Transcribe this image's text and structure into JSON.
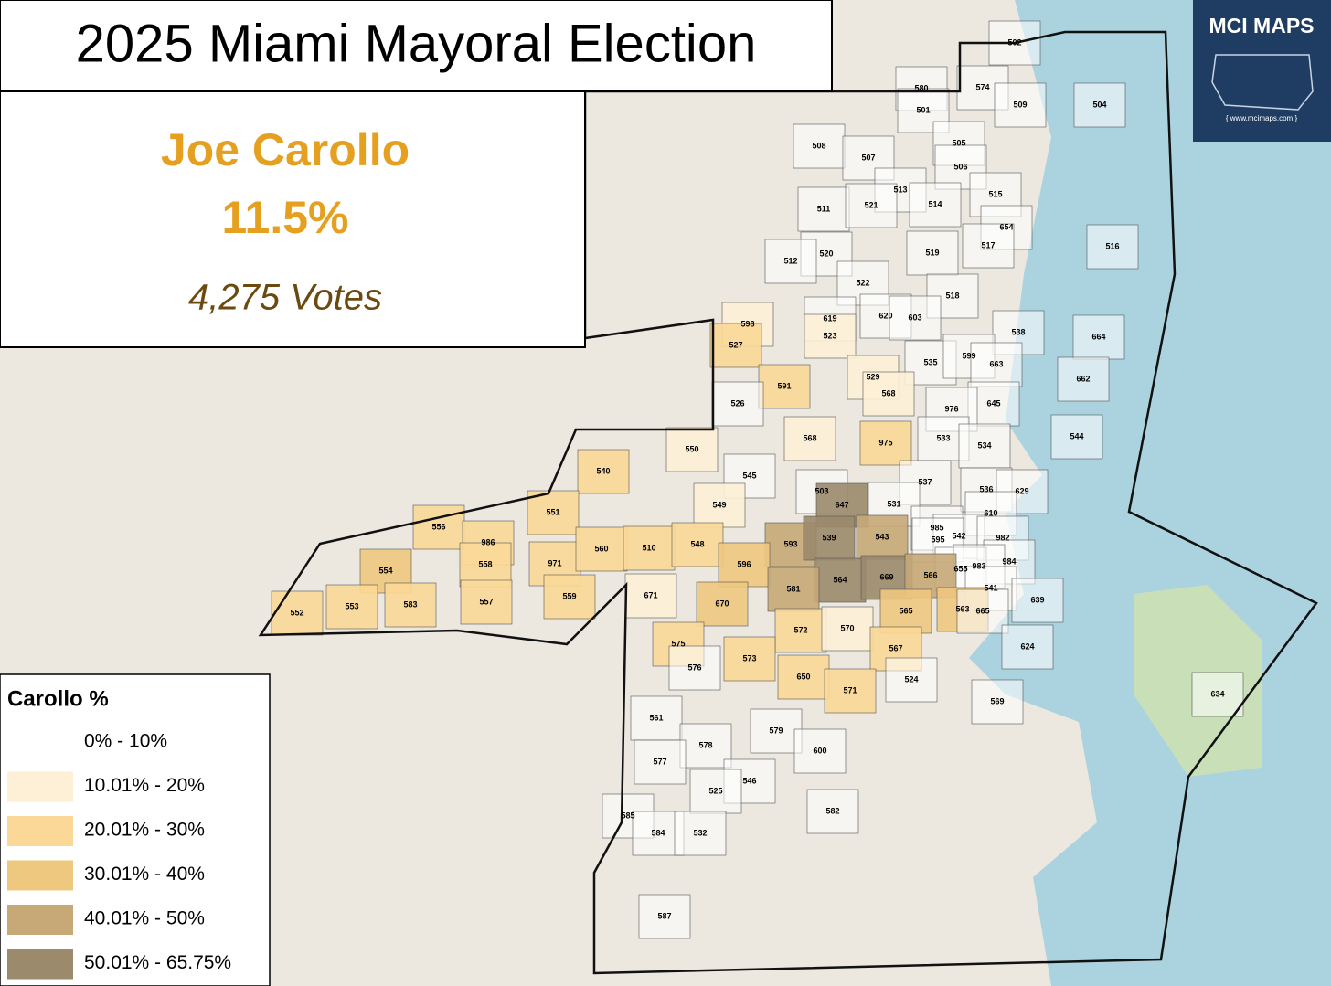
{
  "title": "2025 Miami Mayoral Election",
  "candidate": {
    "name": "Joe Carollo",
    "share": "11.5%",
    "votes": "4,275  Votes"
  },
  "logo": {
    "name": "MCI MAPS",
    "url": "{ www.mcimaps.com }"
  },
  "legend": {
    "title": "Carollo  %",
    "classes": [
      {
        "label": "0% - 10%",
        "color": "#ffffff"
      },
      {
        "label": "10.01% - 20%",
        "color": "#fdf0d6"
      },
      {
        "label": "20.01% - 30%",
        "color": "#fbd897"
      },
      {
        "label": "30.01% - 40%",
        "color": "#eec87f"
      },
      {
        "label": "40.01% - 50%",
        "color": "#c6a977"
      },
      {
        "label": "50.01% - 65.75%",
        "color": "#9b8a6b"
      }
    ]
  },
  "precincts": [
    {
      "label": "502",
      "class": 0
    },
    {
      "label": "580",
      "class": 0
    },
    {
      "label": "574",
      "class": 0
    },
    {
      "label": "501",
      "class": 0
    },
    {
      "label": "509",
      "class": 0
    },
    {
      "label": "504",
      "class": 0
    },
    {
      "label": "505",
      "class": 0
    },
    {
      "label": "508",
      "class": 0
    },
    {
      "label": "507",
      "class": 0
    },
    {
      "label": "506",
      "class": 0
    },
    {
      "label": "513",
      "class": 0
    },
    {
      "label": "514",
      "class": 0
    },
    {
      "label": "515",
      "class": 0
    },
    {
      "label": "511",
      "class": 0
    },
    {
      "label": "521",
      "class": 0
    },
    {
      "label": "654",
      "class": 0
    },
    {
      "label": "516",
      "class": 0
    },
    {
      "label": "517",
      "class": 0
    },
    {
      "label": "519",
      "class": 0
    },
    {
      "label": "520",
      "class": 0
    },
    {
      "label": "512",
      "class": 0
    },
    {
      "label": "522",
      "class": 0
    },
    {
      "label": "518",
      "class": 0
    },
    {
      "label": "619",
      "class": 0
    },
    {
      "label": "620",
      "class": 0
    },
    {
      "label": "603",
      "class": 0
    },
    {
      "label": "598",
      "class": 1
    },
    {
      "label": "527",
      "class": 2
    },
    {
      "label": "523",
      "class": 1
    },
    {
      "label": "538",
      "class": 0
    },
    {
      "label": "664",
      "class": 0
    },
    {
      "label": "535",
      "class": 0
    },
    {
      "label": "599",
      "class": 0
    },
    {
      "label": "663",
      "class": 0
    },
    {
      "label": "529",
      "class": 1
    },
    {
      "label": "591",
      "class": 2
    },
    {
      "label": "568",
      "class": 1
    },
    {
      "label": "662",
      "class": 0
    },
    {
      "label": "645",
      "class": 0
    },
    {
      "label": "976",
      "class": 0
    },
    {
      "label": "526",
      "class": 0
    },
    {
      "label": "568",
      "class": 1
    },
    {
      "label": "975",
      "class": 2
    },
    {
      "label": "533",
      "class": 0
    },
    {
      "label": "534",
      "class": 0
    },
    {
      "label": "544",
      "class": 0
    },
    {
      "label": "550",
      "class": 1
    },
    {
      "label": "540",
      "class": 2
    },
    {
      "label": "545",
      "class": 0
    },
    {
      "label": "537",
      "class": 0
    },
    {
      "label": "536",
      "class": 0
    },
    {
      "label": "629",
      "class": 0
    },
    {
      "label": "549",
      "class": 1
    },
    {
      "label": "551",
      "class": 2
    },
    {
      "label": "503",
      "class": 0
    },
    {
      "label": "647",
      "class": 5
    },
    {
      "label": "531",
      "class": 0
    },
    {
      "label": "610",
      "class": 0
    },
    {
      "label": "556",
      "class": 2
    },
    {
      "label": "986",
      "class": 2
    },
    {
      "label": "985",
      "class": 0
    },
    {
      "label": "542",
      "class": 0
    },
    {
      "label": "593",
      "class": 4
    },
    {
      "label": "539",
      "class": 5
    },
    {
      "label": "543",
      "class": 4
    },
    {
      "label": "595",
      "class": 0
    },
    {
      "label": "982",
      "class": 0
    },
    {
      "label": "984",
      "class": 0
    },
    {
      "label": "554",
      "class": 3
    },
    {
      "label": "558",
      "class": 2
    },
    {
      "label": "971",
      "class": 2
    },
    {
      "label": "560",
      "class": 2
    },
    {
      "label": "510",
      "class": 2
    },
    {
      "label": "548",
      "class": 2
    },
    {
      "label": "596",
      "class": 3
    },
    {
      "label": "655",
      "class": 0
    },
    {
      "label": "983",
      "class": 0
    },
    {
      "label": "564",
      "class": 5
    },
    {
      "label": "669",
      "class": 5
    },
    {
      "label": "566",
      "class": 4
    },
    {
      "label": "581",
      "class": 4
    },
    {
      "label": "671",
      "class": 1
    },
    {
      "label": "670",
      "class": 3
    },
    {
      "label": "541",
      "class": 0
    },
    {
      "label": "639",
      "class": 0
    },
    {
      "label": "552",
      "class": 2
    },
    {
      "label": "553",
      "class": 2
    },
    {
      "label": "583",
      "class": 2
    },
    {
      "label": "557",
      "class": 2
    },
    {
      "label": "559",
      "class": 2
    },
    {
      "label": "565",
      "class": 3
    },
    {
      "label": "563",
      "class": 3
    },
    {
      "label": "665",
      "class": 0
    },
    {
      "label": "572",
      "class": 2
    },
    {
      "label": "570",
      "class": 1
    },
    {
      "label": "575",
      "class": 2
    },
    {
      "label": "567",
      "class": 2
    },
    {
      "label": "624",
      "class": 0
    },
    {
      "label": "573",
      "class": 2
    },
    {
      "label": "576",
      "class": 0
    },
    {
      "label": "650",
      "class": 2
    },
    {
      "label": "524",
      "class": 0
    },
    {
      "label": "571",
      "class": 2
    },
    {
      "label": "569",
      "class": 0
    },
    {
      "label": "561",
      "class": 0
    },
    {
      "label": "578",
      "class": 0
    },
    {
      "label": "579",
      "class": 0
    },
    {
      "label": "600",
      "class": 0
    },
    {
      "label": "577",
      "class": 0
    },
    {
      "label": "546",
      "class": 0
    },
    {
      "label": "525",
      "class": 0
    },
    {
      "label": "582",
      "class": 0
    },
    {
      "label": "585",
      "class": 0
    },
    {
      "label": "584",
      "class": 0
    },
    {
      "label": "532",
      "class": 0
    },
    {
      "label": "587",
      "class": 0
    },
    {
      "label": "634",
      "class": 0
    }
  ]
}
